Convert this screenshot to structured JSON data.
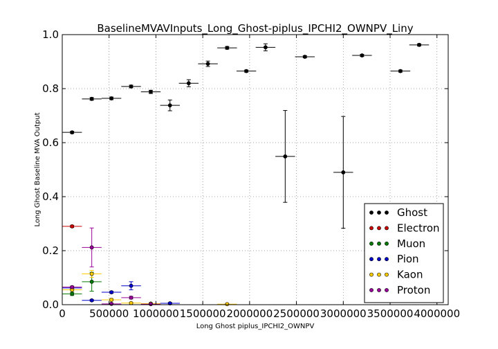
{
  "chart_data": {
    "type": "scatter",
    "title": "BaselineMVAVInputs_Long_Ghost-piplus_IPCHI2_OWNPV_Liny",
    "xlabel": "Long Ghost piplus_IPCHI2_OWNPV",
    "ylabel": "Long Ghost Baseline MVA Output",
    "xlim": [
      0,
      4120000
    ],
    "ylim": [
      0,
      1.0
    ],
    "x_ticks": [
      0,
      500000,
      1000000,
      1500000,
      2000000,
      2500000,
      3000000,
      3500000,
      4000000
    ],
    "x_tick_labels": [
      "0",
      "500000",
      "1000000",
      "1500000",
      "2000000",
      "2500000",
      "3000000",
      "3500000",
      "4000000"
    ],
    "y_ticks": [
      0.0,
      0.2,
      0.4,
      0.6,
      0.8,
      1.0
    ],
    "y_tick_labels": [
      "0.0",
      "0.2",
      "0.4",
      "0.6",
      "0.8",
      "1.0"
    ],
    "grid": true,
    "legend_position": "bottom-right",
    "series": [
      {
        "name": "Ghost",
        "color": "#000000",
        "points": [
          {
            "x": 105000,
            "y": 0.638,
            "xerr": 105000,
            "yerr": 0.004
          },
          {
            "x": 315000,
            "y": 0.762,
            "xerr": 105000,
            "yerr": 0.005
          },
          {
            "x": 525000,
            "y": 0.764,
            "xerr": 105000,
            "yerr": 0.005
          },
          {
            "x": 735000,
            "y": 0.808,
            "xerr": 105000,
            "yerr": 0.005
          },
          {
            "x": 945000,
            "y": 0.788,
            "xerr": 105000,
            "yerr": 0.006
          },
          {
            "x": 1150000,
            "y": 0.738,
            "xerr": 105000,
            "yerr": 0.02
          },
          {
            "x": 1350000,
            "y": 0.82,
            "xerr": 105000,
            "yerr": 0.013
          },
          {
            "x": 1555000,
            "y": 0.892,
            "xerr": 105000,
            "yerr": 0.01
          },
          {
            "x": 1760000,
            "y": 0.951,
            "xerr": 105000,
            "yerr": 0.005
          },
          {
            "x": 1965000,
            "y": 0.865,
            "xerr": 105000,
            "yerr": 0.004
          },
          {
            "x": 2170000,
            "y": 0.953,
            "xerr": 105000,
            "yerr": 0.013
          },
          {
            "x": 2380000,
            "y": 0.549,
            "xerr": 105000,
            "yerr": 0.17
          },
          {
            "x": 2590000,
            "y": 0.918,
            "xerr": 105000,
            "yerr": 0.004
          },
          {
            "x": 3000000,
            "y": 0.49,
            "xerr": 105000,
            "yerr": 0.207
          },
          {
            "x": 3200000,
            "y": 0.923,
            "xerr": 105000,
            "yerr": 0.004
          },
          {
            "x": 3610000,
            "y": 0.865,
            "xerr": 105000,
            "yerr": 0.004
          },
          {
            "x": 3810000,
            "y": 0.962,
            "xerr": 105000,
            "yerr": 0.004
          }
        ]
      },
      {
        "name": "Electron",
        "color": "#cc0000",
        "points": [
          {
            "x": 105000,
            "y": 0.29,
            "xerr": 105000,
            "yerr": 0.004
          }
        ]
      },
      {
        "name": "Muon",
        "color": "#007a00",
        "points": [
          {
            "x": 105000,
            "y": 0.04,
            "xerr": 105000,
            "yerr": 0.006
          },
          {
            "x": 315000,
            "y": 0.085,
            "xerr": 105000,
            "yerr": 0.035
          }
        ]
      },
      {
        "name": "Pion",
        "color": "#0000cc",
        "points": [
          {
            "x": 105000,
            "y": 0.062,
            "xerr": 105000,
            "yerr": 0.004
          },
          {
            "x": 315000,
            "y": 0.016,
            "xerr": 105000,
            "yerr": 0.003
          },
          {
            "x": 525000,
            "y": 0.046,
            "xerr": 105000,
            "yerr": 0.004
          },
          {
            "x": 735000,
            "y": 0.07,
            "xerr": 105000,
            "yerr": 0.015
          },
          {
            "x": 1150000,
            "y": 0.005,
            "xerr": 105000,
            "yerr": 0.003
          }
        ]
      },
      {
        "name": "Kaon",
        "color": "#ffcc00",
        "points": [
          {
            "x": 105000,
            "y": 0.055,
            "xerr": 105000,
            "yerr": 0.004
          },
          {
            "x": 315000,
            "y": 0.114,
            "xerr": 105000,
            "yerr": 0.013
          },
          {
            "x": 525000,
            "y": 0.018,
            "xerr": 105000,
            "yerr": 0.005
          },
          {
            "x": 735000,
            "y": 0.006,
            "xerr": 105000,
            "yerr": 0.003
          },
          {
            "x": 945000,
            "y": 0.004,
            "xerr": 105000,
            "yerr": 0.003
          },
          {
            "x": 1760000,
            "y": 0.002,
            "xerr": 105000,
            "yerr": 0.002
          }
        ]
      },
      {
        "name": "Proton",
        "color": "#990099",
        "points": [
          {
            "x": 105000,
            "y": 0.065,
            "xerr": 105000,
            "yerr": 0.004
          },
          {
            "x": 315000,
            "y": 0.212,
            "xerr": 105000,
            "yerr": 0.072
          },
          {
            "x": 525000,
            "y": 0.003,
            "xerr": 105000,
            "yerr": 0.002
          },
          {
            "x": 735000,
            "y": 0.026,
            "xerr": 105000,
            "yerr": 0.005
          },
          {
            "x": 945000,
            "y": 0.002,
            "xerr": 105000,
            "yerr": 0.002
          }
        ]
      }
    ]
  }
}
